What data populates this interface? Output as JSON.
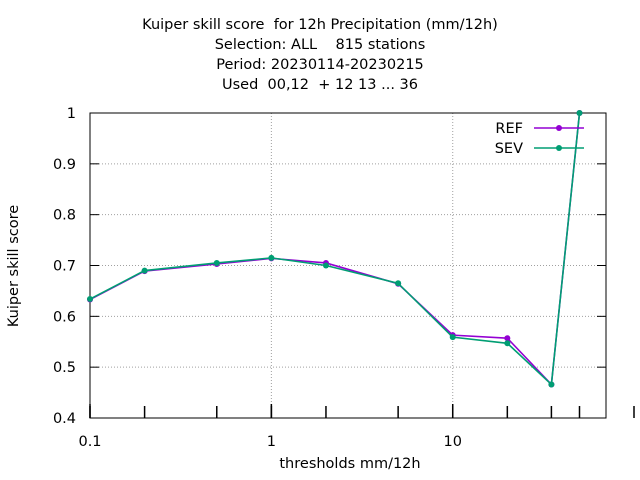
{
  "chart_data": {
    "type": "line",
    "title_lines": [
      "Kuiper skill score  for 12h Precipitation (mm/12h)",
      "Selection: ALL    815 stations",
      "Period: 20230114-20230215",
      "Used  00,12  + 12 13 ... 36"
    ],
    "xlabel": "thresholds mm/12h",
    "ylabel": "Kuiper skill score",
    "x_scale": "log",
    "xlim": [
      0.1,
      70
    ],
    "ylim": [
      0.4,
      1.0
    ],
    "x_tick_labels": [
      "0.1",
      "1",
      "10"
    ],
    "y_tick_labels": [
      "0.4",
      "0.5",
      "0.6",
      "0.7",
      "0.8",
      "0.9",
      "1"
    ],
    "grid": true,
    "legend_position": "top-right",
    "series": [
      {
        "name": "REF",
        "color": "#9400d3",
        "x": [
          0.1,
          0.2,
          0.5,
          1,
          2,
          5,
          10,
          20,
          35,
          50
        ],
        "y": [
          0.633,
          0.689,
          0.703,
          0.714,
          0.705,
          0.664,
          0.563,
          0.557,
          0.466,
          1.0
        ]
      },
      {
        "name": "SEV",
        "color": "#009e73",
        "x": [
          0.1,
          0.2,
          0.5,
          1,
          2,
          5,
          10,
          20,
          35,
          50
        ],
        "y": [
          0.634,
          0.69,
          0.705,
          0.715,
          0.7,
          0.665,
          0.559,
          0.547,
          0.466,
          1.0
        ]
      }
    ]
  }
}
